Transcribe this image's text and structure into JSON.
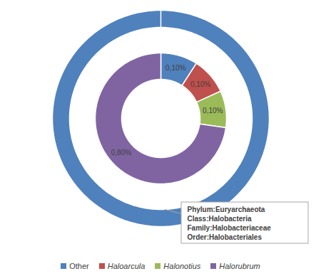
{
  "chart_data": {
    "type": "donut",
    "categories": [
      "Other",
      "Haloarcula",
      "Halonotius",
      "Halorubrum"
    ],
    "colors": [
      "#4f81bd",
      "#c0504d",
      "#9bbb59",
      "#8064a2"
    ],
    "series": [
      {
        "values": [
          100,
          0,
          0,
          0
        ],
        "data_labels": false
      },
      {
        "values": [
          0.1,
          0.1,
          0.1,
          0.8
        ],
        "value_labels": [
          "0,10%",
          "0,10%",
          "0,10%",
          "0,80%"
        ],
        "data_labels": true
      }
    ],
    "annotation": [
      "Phylum:Euryarchaeota",
      "Class:Halobacteria",
      "Family:Halobacteriaceae",
      "Order:Halobacteriales"
    ],
    "legend": "bottom"
  }
}
